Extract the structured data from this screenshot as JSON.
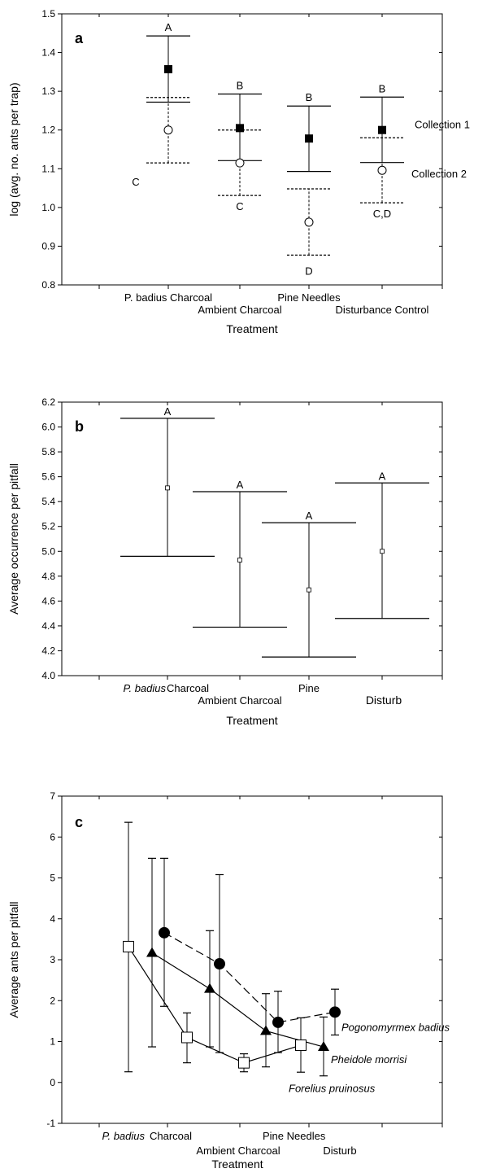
{
  "chart_data": [
    {
      "type": "scatter",
      "panel": "a",
      "xlabel": "Treatment",
      "ylabel": "log (avg. no. ants per trap)",
      "ylim": [
        0.8,
        1.5
      ],
      "yticks": [
        "0.8",
        "0.9",
        "1.0",
        "1.1",
        "1.2",
        "1.3",
        "1.4",
        "1.5"
      ],
      "categories": [
        "P. badius Charcoal",
        "Ambient Charcoal",
        "Pine Needles",
        "Disturbance Control"
      ],
      "series": [
        {
          "name": "Collection 1",
          "marker": "filled-square",
          "line": "solid",
          "values": [
            1.357,
            1.205,
            1.178,
            1.2
          ],
          "upper": [
            1.443,
            1.293,
            1.262,
            1.285
          ],
          "lower": [
            1.272,
            1.121,
            1.093,
            1.116
          ],
          "group_letters": [
            "A",
            "B",
            "B",
            "B"
          ]
        },
        {
          "name": "Collection 2",
          "marker": "open-circle",
          "line": "dashed",
          "values": [
            1.2,
            1.115,
            0.962,
            1.096
          ],
          "upper": [
            1.284,
            1.2,
            1.048,
            1.18
          ],
          "lower": [
            1.115,
            1.031,
            0.877,
            1.012
          ],
          "group_letters": [
            "C",
            "C",
            "D",
            "C,D"
          ]
        }
      ]
    },
    {
      "type": "scatter",
      "panel": "b",
      "xlabel": "Treatment",
      "ylabel": "Average occurrence per pitfall",
      "ylim": [
        4.0,
        6.2
      ],
      "yticks": [
        "4.0",
        "4.2",
        "4.4",
        "4.6",
        "4.8",
        "5.0",
        "5.2",
        "5.4",
        "5.6",
        "5.8",
        "6.0",
        "6.2"
      ],
      "category_labels": {
        "pbadius": "P. badius",
        "charcoal": "Charcoal",
        "ambient": "Ambient Charcoal",
        "pine": "Pine",
        "disturb": "Disturb"
      },
      "series": [
        {
          "marker": "small-open-square",
          "values": [
            5.51,
            4.93,
            4.69,
            5.0
          ],
          "upper": [
            6.07,
            5.48,
            5.23,
            5.55
          ],
          "lower": [
            4.96,
            4.39,
            4.15,
            4.46
          ],
          "group_letters": [
            "A",
            "A",
            "A",
            "A"
          ]
        }
      ]
    },
    {
      "type": "line",
      "panel": "c",
      "xlabel": "Treatment",
      "ylabel": "Average ants per pitfall",
      "ylim": [
        -1,
        7
      ],
      "yticks": [
        "-1",
        "0",
        "1",
        "2",
        "3",
        "4",
        "5",
        "6",
        "7"
      ],
      "category_labels": {
        "pbadius": "P. badius",
        "charcoal": "Charcoal",
        "ambient": "Ambient Charcoal",
        "pine": "Pine Needles",
        "disturb": "Disturb"
      },
      "series": [
        {
          "name": "Pogonomyrmex badius",
          "marker": "filled-circle",
          "line": "dashed",
          "values": [
            3.66,
            2.9,
            1.47,
            1.72
          ],
          "upper": [
            5.48,
            5.08,
            2.23,
            2.28
          ],
          "lower": [
            1.86,
            0.73,
            0.73,
            1.16
          ]
        },
        {
          "name": "Pheidole morrisi",
          "marker": "filled-triangle",
          "line": "solid",
          "values": [
            3.17,
            2.29,
            1.26,
            0.87
          ],
          "upper": [
            5.48,
            3.71,
            2.17,
            1.6
          ],
          "lower": [
            0.87,
            0.87,
            0.38,
            0.16
          ]
        },
        {
          "name": "Forelius pruinosus",
          "marker": "open-square",
          "line": "solid",
          "values": [
            3.32,
            1.1,
            0.48,
            0.91
          ],
          "upper": [
            6.36,
            1.7,
            0.7,
            1.58
          ],
          "lower": [
            0.26,
            0.48,
            0.26,
            0.25
          ]
        }
      ]
    }
  ]
}
